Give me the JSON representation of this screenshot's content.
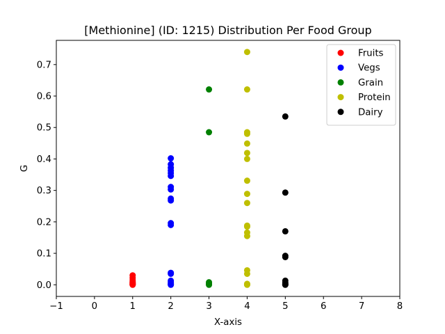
{
  "chart_data": {
    "type": "scatter",
    "title": "[Methionine] (ID: 1215) Distribution Per Food Group",
    "xlabel": "X-axis",
    "ylabel": "G",
    "xlim": [
      -1,
      8
    ],
    "ylim": [
      -0.037,
      0.777
    ],
    "xticks": [
      -1,
      0,
      1,
      2,
      3,
      4,
      5,
      6,
      7,
      8
    ],
    "yticks": [
      0.0,
      0.1,
      0.2,
      0.3,
      0.4,
      0.5,
      0.6,
      0.7
    ],
    "ytick_labels": [
      "0.0",
      "0.1",
      "0.2",
      "0.3",
      "0.4",
      "0.5",
      "0.6",
      "0.7"
    ],
    "grid": false,
    "legend_position": "top-right",
    "series": [
      {
        "name": "Fruits",
        "color": "#ff0000",
        "x": [
          1,
          1,
          1,
          1,
          1,
          1,
          1,
          1,
          1,
          1
        ],
        "y": [
          0.03,
          0.022,
          0.015,
          0.01,
          0.007,
          0.005,
          0.003,
          0.002,
          0.001,
          0.0
        ]
      },
      {
        "name": "Vegs",
        "color": "#0000ff",
        "x": [
          2,
          2,
          2,
          2,
          2,
          2,
          2,
          2,
          2,
          2,
          2,
          2,
          2,
          2,
          2,
          2,
          2,
          2,
          2
        ],
        "y": [
          0.402,
          0.383,
          0.372,
          0.363,
          0.355,
          0.346,
          0.311,
          0.303,
          0.274,
          0.268,
          0.196,
          0.19,
          0.038,
          0.035,
          0.013,
          0.008,
          0.004,
          0.002,
          0.0
        ]
      },
      {
        "name": "Grain",
        "color": "#008000",
        "x": [
          3,
          3,
          3,
          3,
          3,
          3
        ],
        "y": [
          0.621,
          0.485,
          0.008,
          0.004,
          0.002,
          0.0
        ]
      },
      {
        "name": "Protein",
        "color": "#bfbf00",
        "x": [
          4,
          4,
          4,
          4,
          4,
          4,
          4,
          4,
          4,
          4,
          4,
          4,
          4,
          4,
          4,
          4,
          4,
          4,
          4,
          4
        ],
        "y": [
          0.74,
          0.621,
          0.485,
          0.48,
          0.449,
          0.419,
          0.4,
          0.331,
          0.289,
          0.26,
          0.188,
          0.185,
          0.166,
          0.155,
          0.046,
          0.035,
          0.003,
          0.002,
          0.001,
          0.0
        ]
      },
      {
        "name": "Dairy",
        "color": "#000000",
        "x": [
          5,
          5,
          5,
          5,
          5,
          5,
          5,
          5,
          5,
          5
        ],
        "y": [
          0.535,
          0.293,
          0.17,
          0.092,
          0.088,
          0.013,
          0.006,
          0.003,
          0.001,
          0.0
        ]
      }
    ]
  }
}
